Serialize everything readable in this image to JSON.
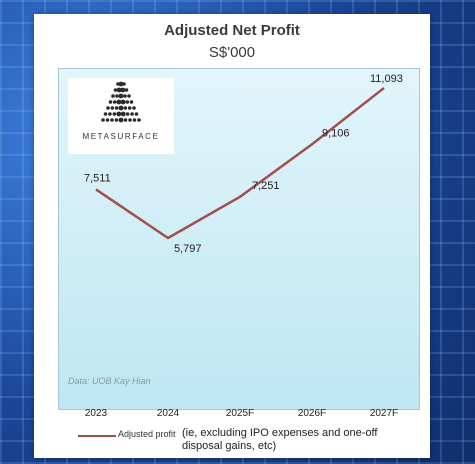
{
  "chart_data": {
    "type": "line",
    "title": "Adjusted Net Profit",
    "subtitle": "S$'000",
    "categories": [
      "2023",
      "2024",
      "2025F",
      "2026F",
      "2027F"
    ],
    "series": [
      {
        "name": "Adjusted profit",
        "values": [
          7511,
          5797,
          7251,
          9106,
          11093
        ],
        "labels": [
          "7,511",
          "5,797",
          "7,251",
          "9,106",
          "11,093"
        ]
      }
    ],
    "legend_note": "(ie, excluding IPO expenses and one-off disposal gains, etc)",
    "legend_position": "bottom",
    "source": "Data: UOB Kay Hian",
    "line_color": "#a0504a",
    "grid": false
  },
  "logo": {
    "text": "METASURFACE",
    "icon": "dotted-sphere-logo-icon"
  }
}
